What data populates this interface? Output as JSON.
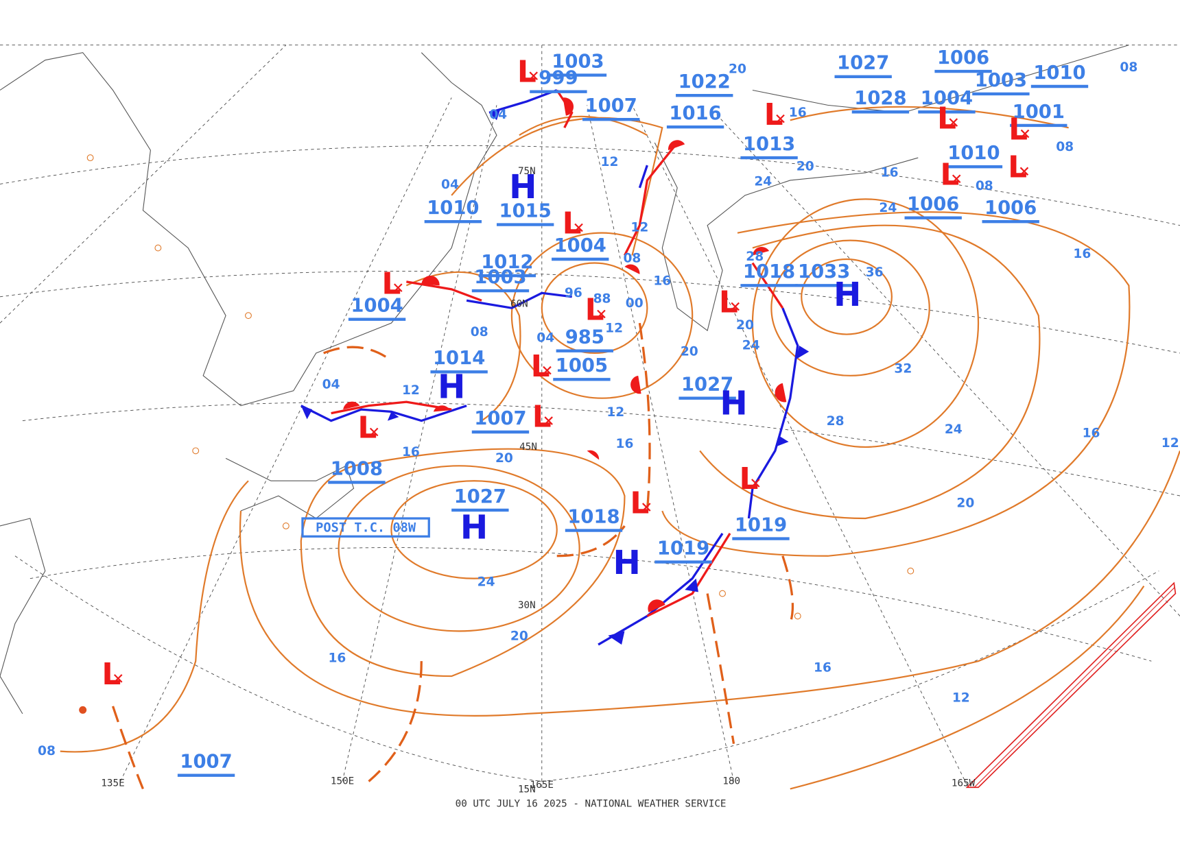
{
  "footer": "00 UTC JULY 16 2025 - NATIONAL WEATHER SERVICE",
  "annotation": "POST T.C. 08W",
  "longitude_labels": [
    "135E",
    "150E",
    "165E",
    "180",
    "165W"
  ],
  "latitude_labels": [
    "15N",
    "30N",
    "45N",
    "60N",
    "75N"
  ],
  "pressure_labels": [
    "1003",
    "999",
    "1007",
    "1022",
    "1016",
    "1013",
    "1027",
    "1006",
    "1003",
    "1010",
    "1028",
    "1004",
    "1001",
    "1010",
    "1006",
    "1006",
    "1010",
    "1015",
    "1004",
    "1012",
    "1003",
    "1018",
    "1033",
    "1004",
    "985",
    "1005",
    "1014",
    "1027",
    "1007",
    "1008",
    "1027",
    "1018",
    "1019",
    "1019",
    "1007"
  ],
  "high_symbols": [
    "H",
    "H",
    "H",
    "H",
    "H",
    "H"
  ],
  "low_symbols": [
    "L",
    "L",
    "L",
    "L",
    "L",
    "L",
    "L",
    "L",
    "L",
    "L",
    "L",
    "L",
    "L",
    "L",
    "L",
    "L"
  ],
  "isobar_labels": [
    "04",
    "04",
    "12",
    "12",
    "08",
    "16",
    "96",
    "88",
    "00",
    "12",
    "04",
    "08",
    "04",
    "12",
    "16",
    "20",
    "16",
    "12",
    "20",
    "20",
    "24",
    "28",
    "36",
    "32",
    "28",
    "24",
    "16",
    "16",
    "20",
    "24",
    "20",
    "16",
    "16",
    "12",
    "08",
    "20",
    "24",
    "24",
    "16",
    "16",
    "20",
    "08",
    "08",
    "08",
    "12"
  ]
}
